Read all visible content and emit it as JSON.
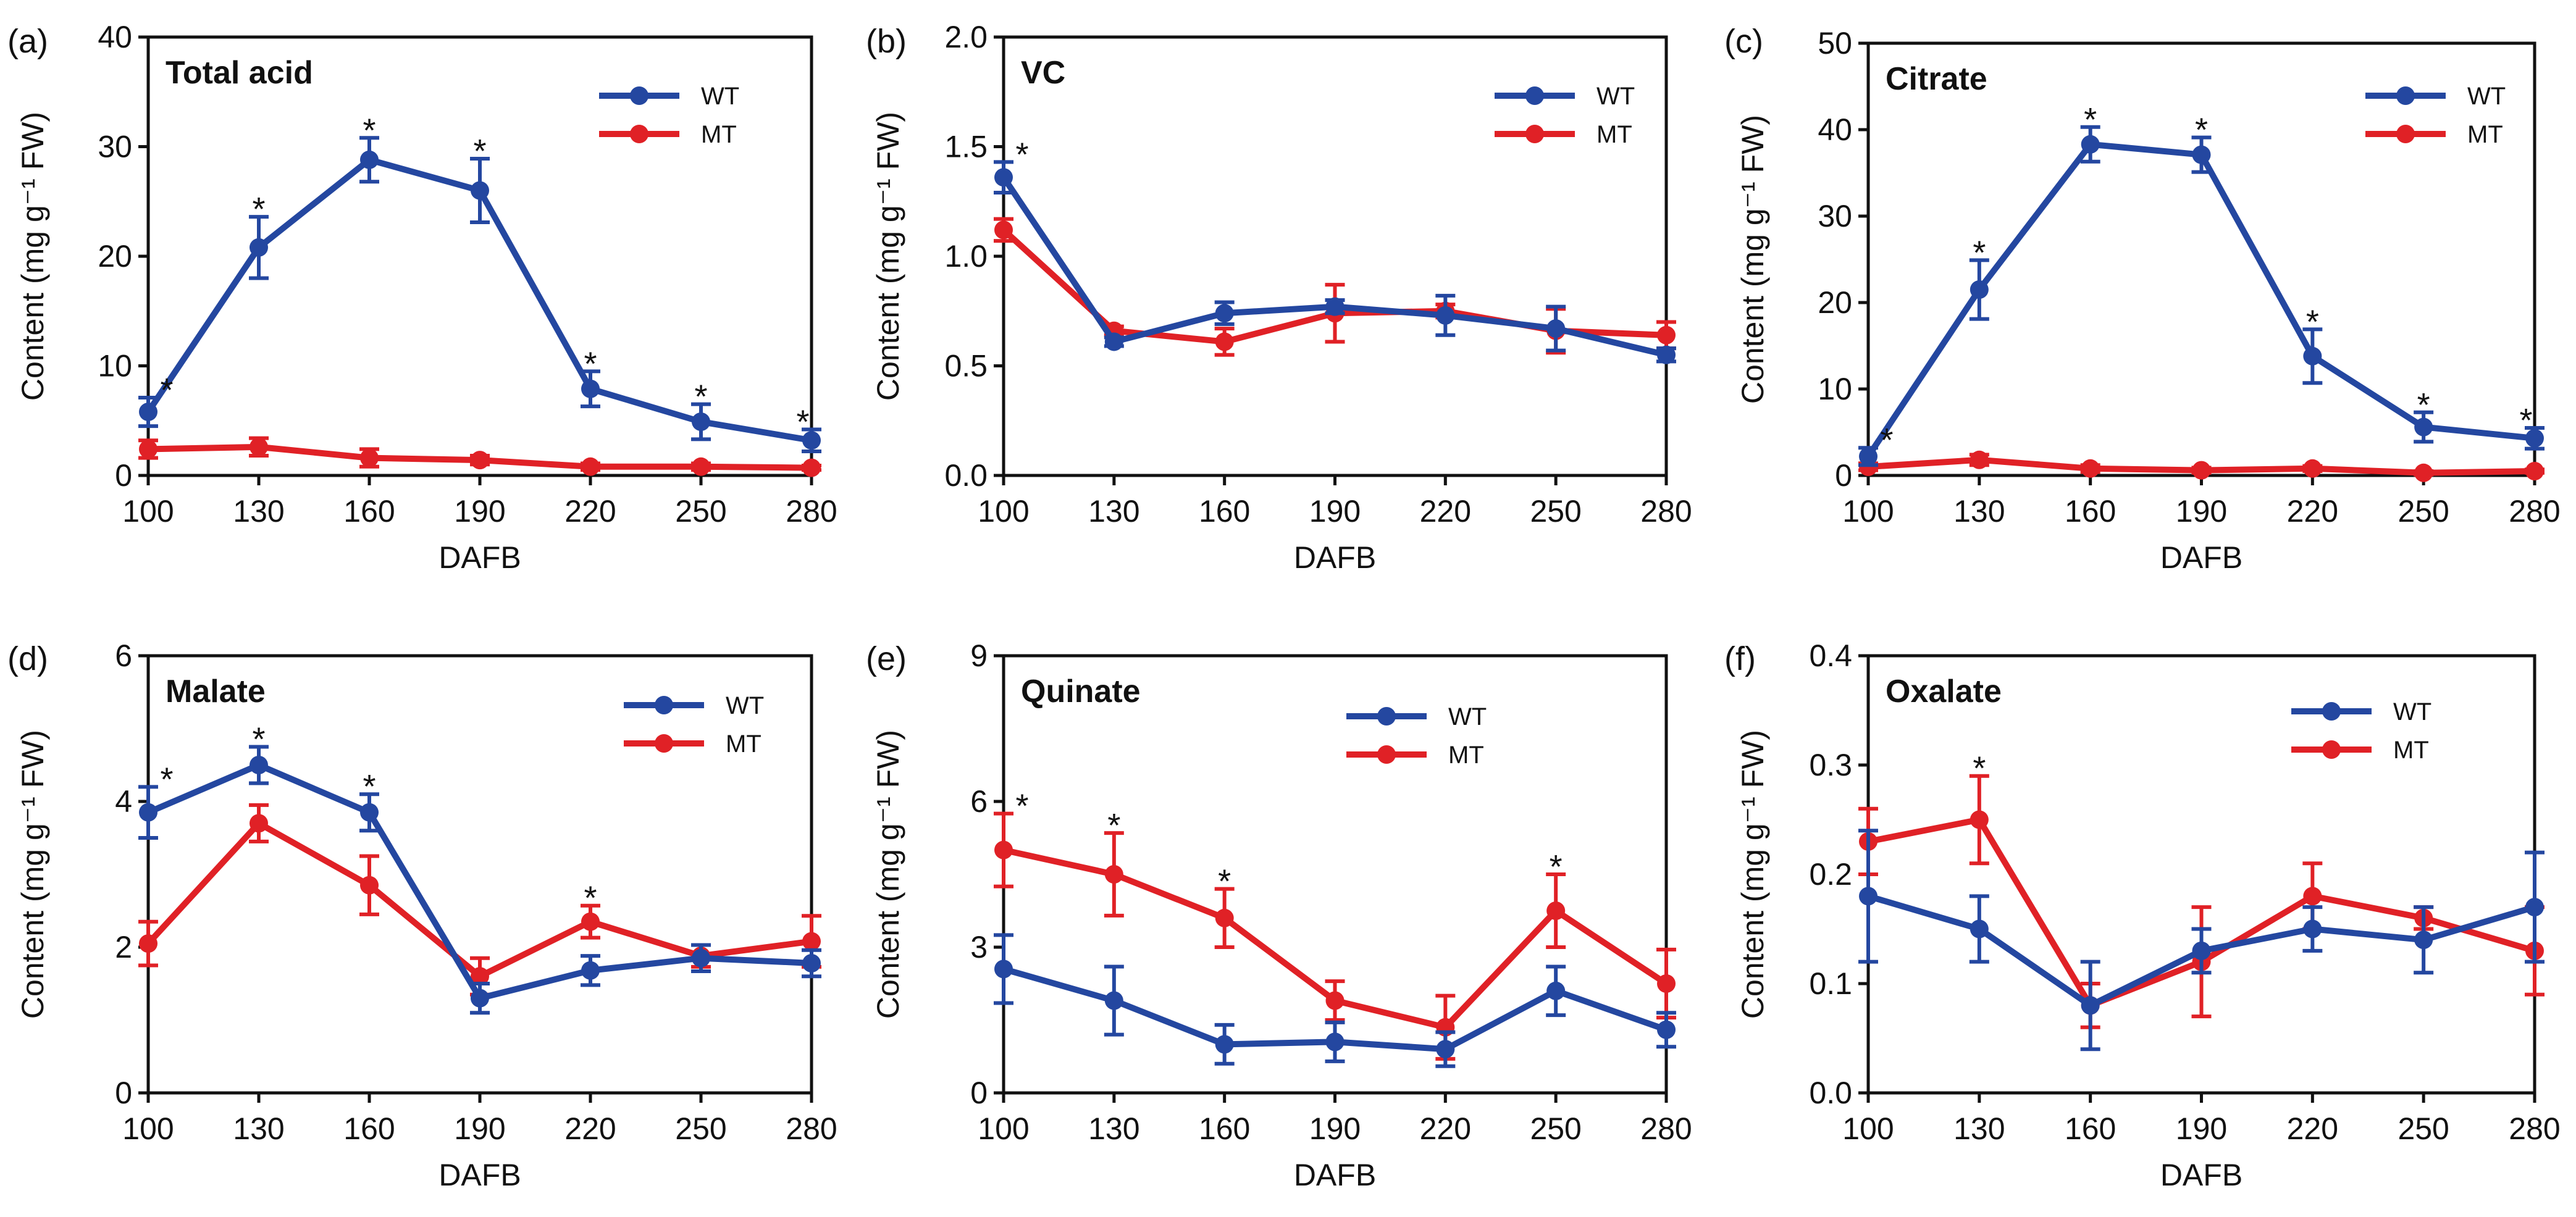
{
  "figure": {
    "legend": {
      "wt": "WT",
      "mt": "MT"
    },
    "colors": {
      "wt": "#2447a0",
      "mt": "#e02126",
      "axis": "#111111"
    },
    "star_symbol": "*"
  },
  "chart_data": [
    {
      "type": "line",
      "panel": "(a)",
      "title": "Total acid",
      "xlabel": "DAFB",
      "ylabel": "Content (mg g⁻¹ FW)",
      "categories": [
        "100",
        "130",
        "160",
        "190",
        "220",
        "250",
        "280"
      ],
      "ylim": [
        0,
        40
      ],
      "yticks": [
        "0",
        "10",
        "20",
        "30",
        "40"
      ],
      "legend_position": "top-right",
      "series": [
        {
          "name": "WT",
          "values": [
            5.8,
            20.8,
            28.8,
            26.0,
            7.9,
            4.9,
            3.2
          ],
          "errors": [
            1.3,
            2.8,
            2.0,
            2.9,
            1.6,
            1.6,
            1.0
          ]
        },
        {
          "name": "MT",
          "values": [
            2.4,
            2.6,
            1.6,
            1.4,
            0.8,
            0.8,
            0.7
          ],
          "errors": [
            0.8,
            0.8,
            0.8,
            0.4,
            0.3,
            0.3,
            0.2
          ]
        }
      ],
      "significant": [
        true,
        true,
        true,
        true,
        true,
        true,
        true
      ]
    },
    {
      "type": "line",
      "panel": "(b)",
      "title": "VC",
      "xlabel": "DAFB",
      "ylabel": "Content (mg g⁻¹ FW)",
      "categories": [
        "100",
        "130",
        "160",
        "190",
        "220",
        "250",
        "280"
      ],
      "ylim": [
        0,
        2.0
      ],
      "yticks": [
        "0.0",
        "0.5",
        "1.0",
        "1.5",
        "2.0"
      ],
      "legend_position": "top-right",
      "series": [
        {
          "name": "WT",
          "values": [
            1.36,
            0.61,
            0.74,
            0.77,
            0.73,
            0.67,
            0.55
          ],
          "errors": [
            0.07,
            0.02,
            0.05,
            0.03,
            0.09,
            0.1,
            0.03
          ]
        },
        {
          "name": "MT",
          "values": [
            1.12,
            0.66,
            0.61,
            0.74,
            0.75,
            0.66,
            0.64
          ],
          "errors": [
            0.05,
            0.02,
            0.06,
            0.13,
            0.03,
            0.1,
            0.06
          ]
        }
      ],
      "significant": [
        true,
        false,
        false,
        false,
        false,
        false,
        false
      ]
    },
    {
      "type": "line",
      "panel": "(c)",
      "title": "Citrate",
      "xlabel": "DAFB",
      "ylabel": "Content (mg g⁻¹ FW)",
      "categories": [
        "100",
        "130",
        "160",
        "190",
        "220",
        "250",
        "280"
      ],
      "ylim": [
        0,
        50
      ],
      "yticks": [
        "0",
        "10",
        "20",
        "30",
        "40",
        "50"
      ],
      "legend_position": "top-right",
      "series": [
        {
          "name": "WT",
          "values": [
            2.2,
            21.5,
            38.3,
            37.1,
            13.8,
            5.6,
            4.3
          ],
          "errors": [
            1.0,
            3.4,
            2.0,
            2.0,
            3.1,
            1.7,
            1.2
          ]
        },
        {
          "name": "MT",
          "values": [
            1.0,
            1.8,
            0.8,
            0.6,
            0.8,
            0.3,
            0.5
          ],
          "errors": [
            0.4,
            0.6,
            0.4,
            0.3,
            0.3,
            0.2,
            0.2
          ]
        }
      ],
      "significant": [
        true,
        true,
        true,
        true,
        true,
        true,
        true
      ]
    },
    {
      "type": "line",
      "panel": "(d)",
      "title": "Malate",
      "xlabel": "DAFB",
      "ylabel": "Content (mg g⁻¹ FW)",
      "categories": [
        "100",
        "130",
        "160",
        "190",
        "220",
        "250",
        "280"
      ],
      "ylim": [
        0,
        6
      ],
      "yticks": [
        "0",
        "2",
        "4",
        "6"
      ],
      "legend_position": "top-right",
      "series": [
        {
          "name": "WT",
          "values": [
            3.85,
            4.5,
            3.85,
            1.3,
            1.68,
            1.85,
            1.78
          ],
          "errors": [
            0.35,
            0.25,
            0.25,
            0.2,
            0.2,
            0.18,
            0.18
          ]
        },
        {
          "name": "MT",
          "values": [
            2.05,
            3.7,
            2.85,
            1.6,
            2.35,
            1.88,
            2.08
          ],
          "errors": [
            0.3,
            0.25,
            0.4,
            0.25,
            0.22,
            0.15,
            0.35
          ]
        }
      ],
      "significant": [
        true,
        true,
        true,
        false,
        true,
        false,
        false
      ]
    },
    {
      "type": "line",
      "panel": "(e)",
      "title": "Quinate",
      "xlabel": "DAFB",
      "ylabel": "Content (mg g⁻¹ FW)",
      "categories": [
        "100",
        "130",
        "160",
        "190",
        "220",
        "250",
        "280"
      ],
      "ylim": [
        0,
        9
      ],
      "yticks": [
        "0",
        "3",
        "6",
        "9"
      ],
      "legend_position": "top-right",
      "series": [
        {
          "name": "WT",
          "values": [
            2.55,
            1.9,
            1.0,
            1.05,
            0.9,
            2.1,
            1.3
          ],
          "errors": [
            0.7,
            0.7,
            0.4,
            0.4,
            0.35,
            0.5,
            0.35
          ]
        },
        {
          "name": "MT",
          "values": [
            5.0,
            4.5,
            3.6,
            1.9,
            1.35,
            3.75,
            2.25
          ],
          "errors": [
            0.75,
            0.85,
            0.6,
            0.4,
            0.65,
            0.75,
            0.7
          ]
        }
      ],
      "significant": [
        true,
        true,
        true,
        false,
        false,
        true,
        false
      ]
    },
    {
      "type": "line",
      "panel": "(f)",
      "title": "Oxalate",
      "xlabel": "DAFB",
      "ylabel": "Content (mg g⁻¹ FW)",
      "categories": [
        "100",
        "130",
        "160",
        "190",
        "220",
        "250",
        "280"
      ],
      "ylim": [
        0,
        0.4
      ],
      "yticks": [
        "0.0",
        "0.1",
        "0.2",
        "0.3",
        "0.4"
      ],
      "legend_position": "top-right",
      "series": [
        {
          "name": "WT",
          "values": [
            0.18,
            0.15,
            0.08,
            0.13,
            0.15,
            0.14,
            0.17
          ],
          "errors": [
            0.06,
            0.03,
            0.04,
            0.02,
            0.02,
            0.03,
            0.05
          ]
        },
        {
          "name": "MT",
          "values": [
            0.23,
            0.25,
            0.08,
            0.12,
            0.18,
            0.16,
            0.13
          ],
          "errors": [
            0.03,
            0.04,
            0.02,
            0.05,
            0.03,
            0.01,
            0.04
          ]
        }
      ],
      "significant": [
        false,
        true,
        false,
        false,
        false,
        false,
        false
      ]
    }
  ]
}
